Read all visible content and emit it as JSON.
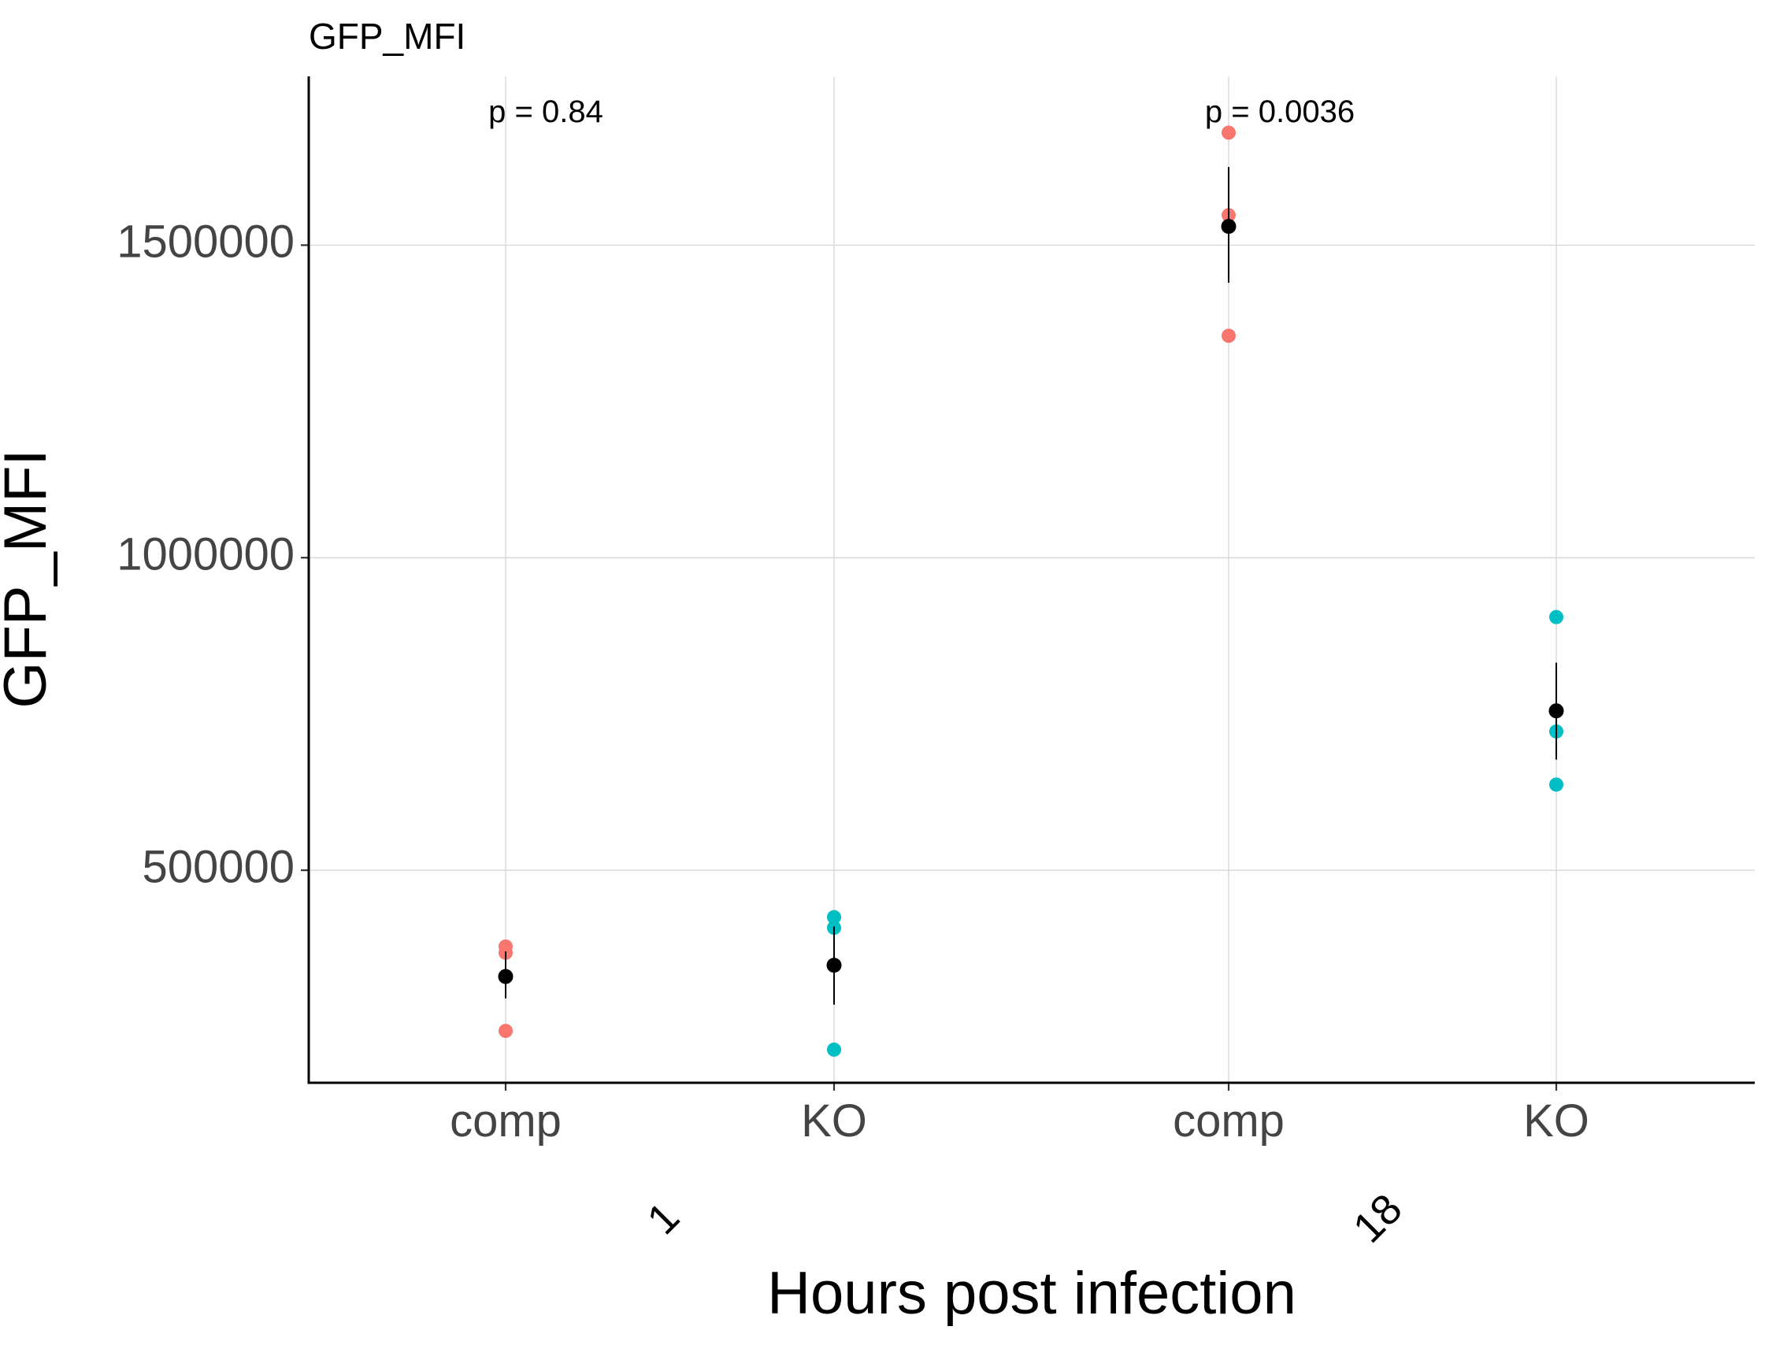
{
  "chart_data": {
    "type": "scatter",
    "title": "GFP_MFI",
    "xlabel": "Hours post infection",
    "ylabel": "GFP_MFI",
    "ylim": [
      160000,
      1770000
    ],
    "yticks": [
      500000,
      1000000,
      1500000
    ],
    "ytick_labels": [
      "500000",
      "1000000",
      "1500000"
    ],
    "grid": true,
    "legend": "none",
    "colors": {
      "comp": "#F8766D",
      "KO": "#00BFC4",
      "summary": "#000000"
    },
    "groups": [
      {
        "label": "1",
        "annotation": "p = 0.84",
        "categories": [
          {
            "label": "comp",
            "points": [
              378000,
              368000,
              243000
            ],
            "mean": 330000,
            "err_low": 295000,
            "err_high": 370000
          },
          {
            "label": "KO",
            "points": [
              425000,
              408000,
              213000
            ],
            "mean": 348000,
            "err_low": 285000,
            "err_high": 410000
          }
        ]
      },
      {
        "label": "18",
        "annotation": "p = 0.0036",
        "categories": [
          {
            "label": "comp",
            "points": [
              1680000,
              1548000,
              1355000
            ],
            "mean": 1530000,
            "err_low": 1440000,
            "err_high": 1625000
          },
          {
            "label": "KO",
            "points": [
              905000,
              722000,
              637000
            ],
            "mean": 755000,
            "err_low": 677000,
            "err_high": 832000
          }
        ]
      }
    ]
  }
}
